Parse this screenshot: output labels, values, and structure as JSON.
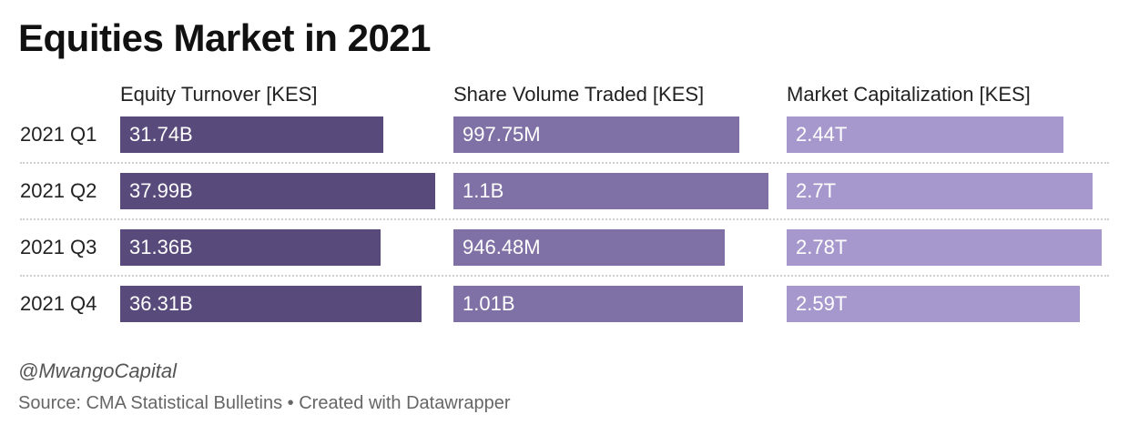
{
  "chart_data": {
    "type": "bar",
    "title": "Equities Market in 2021",
    "categories": [
      "2021 Q1",
      "2021 Q2",
      "2021 Q3",
      "2021 Q4"
    ],
    "series": [
      {
        "name": "Equity Turnover [KES]",
        "values": [
          31.74,
          37.99,
          31.36,
          36.31
        ],
        "value_labels": [
          "31.74B",
          "37.99B",
          "31.36B",
          "36.31B"
        ],
        "color": "#584b7b"
      },
      {
        "name": "Share Volume Traded [KES]",
        "values": [
          0.99775,
          1.1,
          0.94648,
          1.01
        ],
        "value_labels": [
          "997.75M",
          "1.1B",
          "946.48M",
          "1.01B"
        ],
        "color": "#7f70a6"
      },
      {
        "name": "Market Capitalization [KES]",
        "values": [
          2.44,
          2.7,
          2.78,
          2.59
        ],
        "value_labels": [
          "2.44T",
          "2.7T",
          "2.78T",
          "2.59T"
        ],
        "color": "#a697cd"
      }
    ]
  },
  "credit": "@MwangoCapital",
  "source": "Source: CMA Statistical Bulletins • Created with Datawrapper"
}
